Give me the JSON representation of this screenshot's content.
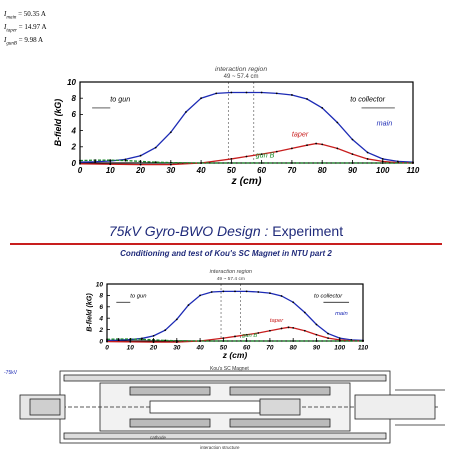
{
  "currents": [
    {
      "symbol": "I",
      "sub": "main",
      "value": "= 50.35 A"
    },
    {
      "symbol": "I",
      "sub": "taper",
      "value": "= 14.97 A"
    },
    {
      "symbol": "I",
      "sub": "gunB",
      "value": "= 9.98 A"
    }
  ],
  "slide": {
    "title_main": "75kV Gyro-BWO Design",
    "title_sep": " : ",
    "title_tail": "Experiment",
    "subtitle": "Conditioning and test of Kou's SC Magnet in NTU part 2"
  },
  "schematic": {
    "voltage": "-75kV",
    "magnet_label": "Kou's SC Magnet",
    "cathode_label": "cathode",
    "structure_label": "interaction structure"
  },
  "colors": {
    "main": "#1d2bb5",
    "taper": "#c81e1e",
    "gunB": "#1a8a2a",
    "title": "#1f2a7a"
  },
  "chart_data": [
    {
      "type": "line",
      "xlabel": "z (cm)",
      "ylabel": "B-field (kG)",
      "xlim": [
        0,
        110
      ],
      "ylim": [
        0,
        10
      ],
      "xticks": [
        "0",
        "10",
        "20",
        "30",
        "40",
        "50",
        "60",
        "70",
        "80",
        "90",
        "100",
        "110"
      ],
      "yticks": [
        "0",
        "2",
        "4",
        "6",
        "8",
        "10"
      ],
      "region_label": "interaction region",
      "region_range": "49 ~ 57.4 cm",
      "region": [
        49,
        57.4
      ],
      "annotations": {
        "left": "to gun",
        "right": "to collector"
      },
      "series": [
        {
          "name": "main",
          "x": [
            0,
            5,
            10,
            15,
            20,
            25,
            30,
            35,
            40,
            45,
            50,
            55,
            60,
            65,
            70,
            75,
            80,
            85,
            90,
            95,
            100,
            105,
            110
          ],
          "y": [
            0.1,
            0.15,
            0.25,
            0.45,
            0.9,
            1.9,
            3.8,
            6.3,
            8.0,
            8.6,
            8.7,
            8.7,
            8.7,
            8.6,
            8.4,
            7.9,
            6.8,
            5.0,
            2.9,
            1.3,
            0.5,
            0.2,
            0.1
          ]
        },
        {
          "name": "taper",
          "x": [
            0,
            10,
            20,
            30,
            40,
            50,
            55,
            60,
            65,
            70,
            75,
            78,
            80,
            85,
            90,
            95,
            100,
            105,
            110
          ],
          "y": [
            -0.1,
            -0.15,
            -0.2,
            -0.2,
            0.0,
            0.5,
            0.8,
            1.1,
            1.4,
            1.8,
            2.2,
            2.4,
            2.3,
            1.8,
            1.1,
            0.5,
            0.2,
            0.05,
            0.0
          ]
        },
        {
          "name": "gun B",
          "x": [
            0,
            5,
            10,
            15,
            20,
            25,
            30,
            40,
            50,
            60,
            70,
            80,
            90,
            100,
            110
          ],
          "y": [
            0.3,
            0.35,
            0.35,
            0.3,
            0.2,
            0.1,
            0.05,
            0.0,
            0.0,
            0.0,
            0.0,
            0.0,
            0.0,
            0.0,
            0.0
          ]
        }
      ]
    },
    {
      "type": "line",
      "xlabel": "z (cm)",
      "ylabel": "B-field (kG)",
      "xlim": [
        0,
        110
      ],
      "ylim": [
        0,
        10
      ],
      "xticks": [
        "0",
        "10",
        "20",
        "30",
        "40",
        "50",
        "60",
        "70",
        "80",
        "90",
        "100",
        "110"
      ],
      "yticks": [
        "0",
        "2",
        "4",
        "6",
        "8",
        "10"
      ],
      "region_label": "interaction region",
      "region_range": "49 ~ 57.4 cm",
      "region": [
        49,
        57.4
      ],
      "annotations": {
        "left": "to gun",
        "right": "to collector"
      },
      "series": [
        {
          "name": "main",
          "x": [
            0,
            5,
            10,
            15,
            20,
            25,
            30,
            35,
            40,
            45,
            50,
            55,
            60,
            65,
            70,
            75,
            80,
            85,
            90,
            95,
            100,
            105,
            110
          ],
          "y": [
            0.1,
            0.15,
            0.25,
            0.45,
            0.9,
            1.9,
            3.8,
            6.3,
            8.0,
            8.6,
            8.7,
            8.7,
            8.7,
            8.6,
            8.4,
            7.9,
            6.8,
            5.0,
            2.9,
            1.3,
            0.5,
            0.2,
            0.1
          ]
        },
        {
          "name": "taper",
          "x": [
            0,
            10,
            20,
            30,
            40,
            50,
            55,
            60,
            65,
            70,
            75,
            78,
            80,
            85,
            90,
            95,
            100,
            105,
            110
          ],
          "y": [
            -0.1,
            -0.15,
            -0.2,
            -0.2,
            0.0,
            0.5,
            0.8,
            1.1,
            1.4,
            1.8,
            2.2,
            2.4,
            2.3,
            1.8,
            1.1,
            0.5,
            0.2,
            0.05,
            0.0
          ]
        },
        {
          "name": "gun B",
          "x": [
            0,
            5,
            10,
            15,
            20,
            25,
            30,
            40,
            50,
            60,
            70,
            80,
            90,
            100,
            110
          ],
          "y": [
            0.3,
            0.35,
            0.35,
            0.3,
            0.2,
            0.1,
            0.05,
            0.0,
            0.0,
            0.0,
            0.0,
            0.0,
            0.0,
            0.0,
            0.0
          ]
        }
      ]
    }
  ]
}
